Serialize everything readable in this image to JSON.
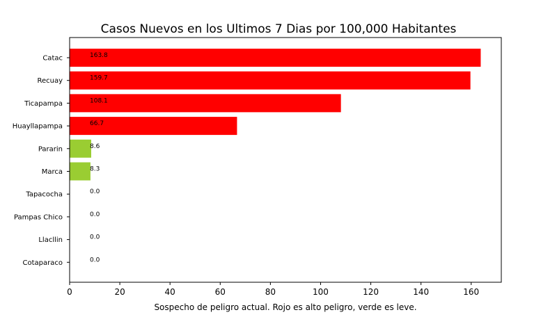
{
  "chart_data": {
    "type": "bar",
    "orientation": "horizontal",
    "title": "Casos Nuevos en los Ultimos 7 Dias por 100,000 Habitantes",
    "xlabel": "Sospecho de peligro actual. Rojo es alto peligro, verde es leve.",
    "ylabel": "",
    "categories": [
      "Catac",
      "Recuay",
      "Ticapampa",
      "Huayllapampa",
      "Pararin",
      "Marca",
      "Tapacocha",
      "Pampas Chico",
      "Llacllin",
      "Cotaparaco"
    ],
    "values": [
      163.8,
      159.7,
      108.1,
      66.7,
      8.6,
      8.3,
      0.0,
      0.0,
      0.0,
      0.0
    ],
    "value_labels": [
      "163.8",
      "159.7",
      "108.1",
      "66.7",
      "8.6",
      "8.3",
      "0.0",
      "0.0",
      "0.0",
      "0.0"
    ],
    "bar_colors": [
      "#ff0000",
      "#ff0000",
      "#ff0000",
      "#ff0000",
      "#9acd32",
      "#9acd32",
      "#9acd32",
      "#9acd32",
      "#9acd32",
      "#9acd32"
    ],
    "xlim": [
      0,
      172
    ],
    "xticks": [
      0,
      20,
      40,
      60,
      80,
      100,
      120,
      140,
      160
    ],
    "grid": false,
    "legend": "none"
  }
}
